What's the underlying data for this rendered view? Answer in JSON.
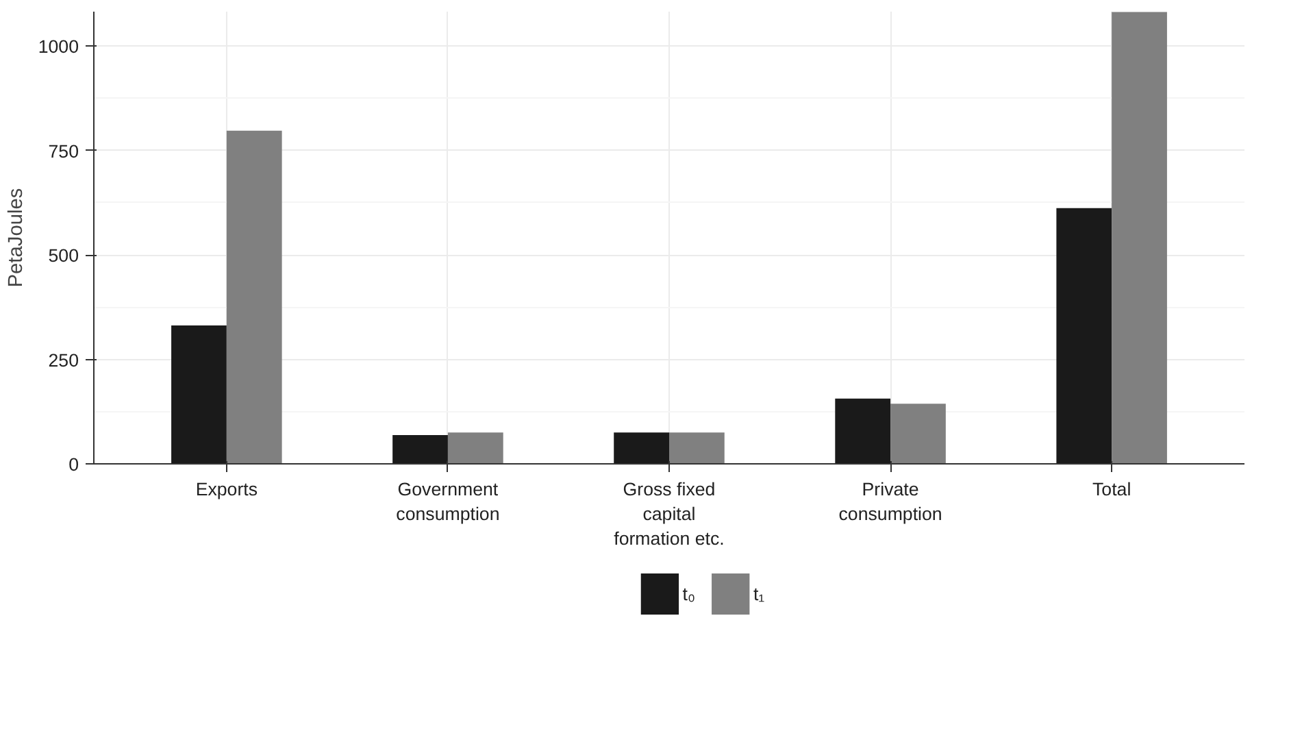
{
  "chart_data": {
    "type": "bar",
    "ylabel": "PetaJoules",
    "categories": [
      "Exports",
      "Government\nconsumption",
      "Gross fixed\ncapital\nformation etc.",
      "Private\nconsumption",
      "Total"
    ],
    "series": [
      {
        "name": "t₀",
        "color": "#1a1a1a",
        "values": [
          331,
          69,
          75,
          156,
          612
        ]
      },
      {
        "name": "t₁",
        "color": "#808080",
        "values": [
          797,
          75,
          75,
          144,
          1081
        ]
      }
    ],
    "ylim": [
      0,
      1082
    ],
    "yticks": [
      0,
      250,
      500,
      750,
      1000
    ],
    "grid": true,
    "legend": "bottom"
  }
}
